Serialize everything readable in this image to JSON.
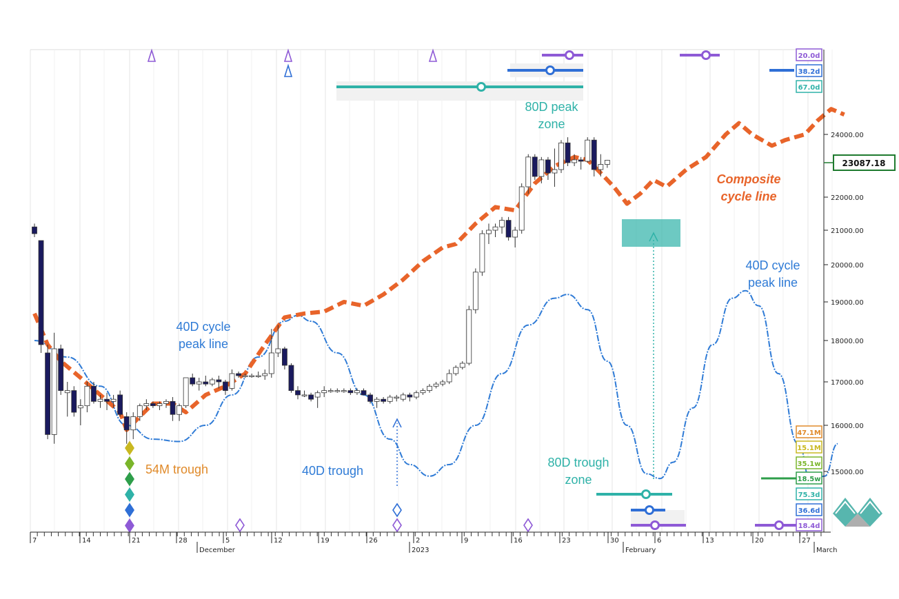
{
  "chart_data": {
    "type": "candlestick",
    "price_axis": {
      "labels": [
        "24000.00",
        "23000.00",
        "22000.00",
        "21000.00",
        "20000.00",
        "19000.00",
        "18000.00",
        "17000.00",
        "16000.00",
        "15000.00"
      ],
      "current_price": "23087.18"
    },
    "x_axis": {
      "day_labels": [
        "7",
        "14",
        "21",
        "28",
        "5",
        "12",
        "19",
        "26",
        "2",
        "9",
        "16",
        "23",
        "30",
        "6",
        "13",
        "20",
        "27"
      ],
      "month_labels": [
        "December",
        "2023",
        "February",
        "March"
      ]
    },
    "candles": [
      {
        "o": 21100,
        "h": 21200,
        "l": 20800,
        "c": 20900
      },
      {
        "o": 20700,
        "h": 20700,
        "l": 17700,
        "c": 17900
      },
      {
        "o": 17700,
        "h": 17900,
        "l": 15700,
        "c": 15800
      },
      {
        "o": 15800,
        "h": 18200,
        "l": 15600,
        "c": 17800
      },
      {
        "o": 17800,
        "h": 17900,
        "l": 16700,
        "c": 16800
      },
      {
        "o": 16750,
        "h": 17000,
        "l": 16200,
        "c": 16800
      },
      {
        "o": 16800,
        "h": 16900,
        "l": 16200,
        "c": 16300
      },
      {
        "o": 16400,
        "h": 16600,
        "l": 16000,
        "c": 16450
      },
      {
        "o": 16450,
        "h": 17000,
        "l": 16300,
        "c": 16900
      },
      {
        "o": 16900,
        "h": 17000,
        "l": 16500,
        "c": 16550
      },
      {
        "o": 16550,
        "h": 16700,
        "l": 16400,
        "c": 16600
      },
      {
        "o": 16600,
        "h": 16750,
        "l": 16350,
        "c": 16550
      },
      {
        "o": 16550,
        "h": 16700,
        "l": 16400,
        "c": 16600
      },
      {
        "o": 16700,
        "h": 16800,
        "l": 16200,
        "c": 16250
      },
      {
        "o": 16200,
        "h": 16300,
        "l": 15600,
        "c": 15900
      },
      {
        "o": 15900,
        "h": 16300,
        "l": 15700,
        "c": 16200
      },
      {
        "o": 16200,
        "h": 16500,
        "l": 16100,
        "c": 16450
      },
      {
        "o": 16450,
        "h": 16600,
        "l": 16350,
        "c": 16500
      },
      {
        "o": 16500,
        "h": 16550,
        "l": 16400,
        "c": 16450
      },
      {
        "o": 16450,
        "h": 16550,
        "l": 16350,
        "c": 16500
      },
      {
        "o": 16500,
        "h": 16600,
        "l": 16400,
        "c": 16550
      },
      {
        "o": 16550,
        "h": 16650,
        "l": 16100,
        "c": 16250
      },
      {
        "o": 16250,
        "h": 16500,
        "l": 16100,
        "c": 16450
      },
      {
        "o": 16450,
        "h": 17100,
        "l": 16400,
        "c": 17100
      },
      {
        "o": 17100,
        "h": 17200,
        "l": 16900,
        "c": 16950
      },
      {
        "o": 16950,
        "h": 17100,
        "l": 16800,
        "c": 17000
      },
      {
        "o": 17000,
        "h": 17150,
        "l": 16900,
        "c": 16950
      },
      {
        "o": 16950,
        "h": 17100,
        "l": 16900,
        "c": 17050
      },
      {
        "o": 17050,
        "h": 17150,
        "l": 16850,
        "c": 17000
      },
      {
        "o": 17000,
        "h": 17050,
        "l": 16700,
        "c": 16800
      },
      {
        "o": 16850,
        "h": 17300,
        "l": 16800,
        "c": 17200
      },
      {
        "o": 17200,
        "h": 17250,
        "l": 17100,
        "c": 17150
      },
      {
        "o": 17150,
        "h": 17200,
        "l": 17100,
        "c": 17150
      },
      {
        "o": 17150,
        "h": 17200,
        "l": 17100,
        "c": 17150
      },
      {
        "o": 17150,
        "h": 17250,
        "l": 17100,
        "c": 17150
      },
      {
        "o": 17150,
        "h": 17300,
        "l": 17050,
        "c": 17200
      },
      {
        "o": 17200,
        "h": 18300,
        "l": 17100,
        "c": 17700
      },
      {
        "o": 17700,
        "h": 18400,
        "l": 17600,
        "c": 17800
      },
      {
        "o": 17800,
        "h": 17850,
        "l": 17300,
        "c": 17400
      },
      {
        "o": 17400,
        "h": 17450,
        "l": 16750,
        "c": 16800
      },
      {
        "o": 16800,
        "h": 16900,
        "l": 16600,
        "c": 16700
      },
      {
        "o": 16700,
        "h": 16800,
        "l": 16650,
        "c": 16700
      },
      {
        "o": 16700,
        "h": 16750,
        "l": 16550,
        "c": 16600
      },
      {
        "o": 16650,
        "h": 16800,
        "l": 16400,
        "c": 16750
      },
      {
        "o": 16750,
        "h": 16900,
        "l": 16650,
        "c": 16800
      },
      {
        "o": 16800,
        "h": 16850,
        "l": 16750,
        "c": 16800
      },
      {
        "o": 16800,
        "h": 16850,
        "l": 16750,
        "c": 16800
      },
      {
        "o": 16800,
        "h": 16850,
        "l": 16750,
        "c": 16800
      },
      {
        "o": 16800,
        "h": 16850,
        "l": 16700,
        "c": 16750
      },
      {
        "o": 16750,
        "h": 16850,
        "l": 16700,
        "c": 16800
      },
      {
        "o": 16800,
        "h": 16850,
        "l": 16700,
        "c": 16700
      },
      {
        "o": 16700,
        "h": 16750,
        "l": 16500,
        "c": 16550
      },
      {
        "o": 16550,
        "h": 16650,
        "l": 16400,
        "c": 16600
      },
      {
        "o": 16600,
        "h": 16650,
        "l": 16500,
        "c": 16550
      },
      {
        "o": 16550,
        "h": 16700,
        "l": 16500,
        "c": 16650
      },
      {
        "o": 16650,
        "h": 16700,
        "l": 16550,
        "c": 16650
      },
      {
        "o": 16600,
        "h": 16750,
        "l": 16550,
        "c": 16700
      },
      {
        "o": 16700,
        "h": 16750,
        "l": 16550,
        "c": 16650
      },
      {
        "o": 16650,
        "h": 16800,
        "l": 16600,
        "c": 16750
      },
      {
        "o": 16750,
        "h": 16850,
        "l": 16700,
        "c": 16800
      },
      {
        "o": 16800,
        "h": 16950,
        "l": 16750,
        "c": 16900
      },
      {
        "o": 16900,
        "h": 17000,
        "l": 16850,
        "c": 16950
      },
      {
        "o": 16950,
        "h": 17050,
        "l": 16900,
        "c": 17000
      },
      {
        "o": 17000,
        "h": 17300,
        "l": 16950,
        "c": 17200
      },
      {
        "o": 17200,
        "h": 17400,
        "l": 17150,
        "c": 17350
      },
      {
        "o": 17350,
        "h": 17500,
        "l": 17300,
        "c": 17450
      },
      {
        "o": 17450,
        "h": 18900,
        "l": 17400,
        "c": 18800
      },
      {
        "o": 18800,
        "h": 19900,
        "l": 18700,
        "c": 19800
      },
      {
        "o": 19800,
        "h": 21000,
        "l": 19700,
        "c": 20900
      },
      {
        "o": 20900,
        "h": 21200,
        "l": 20600,
        "c": 21000
      },
      {
        "o": 21000,
        "h": 21200,
        "l": 20800,
        "c": 21100
      },
      {
        "o": 21100,
        "h": 21400,
        "l": 20900,
        "c": 21300
      },
      {
        "o": 21300,
        "h": 21400,
        "l": 20700,
        "c": 20800
      },
      {
        "o": 20800,
        "h": 21100,
        "l": 20500,
        "c": 21000
      },
      {
        "o": 21000,
        "h": 22400,
        "l": 20900,
        "c": 22300
      },
      {
        "o": 22300,
        "h": 23300,
        "l": 22100,
        "c": 23200
      },
      {
        "o": 23200,
        "h": 23300,
        "l": 22500,
        "c": 22600
      },
      {
        "o": 22600,
        "h": 23200,
        "l": 22400,
        "c": 23100
      },
      {
        "o": 23100,
        "h": 23200,
        "l": 22500,
        "c": 22700
      },
      {
        "o": 22700,
        "h": 23500,
        "l": 22300,
        "c": 22800
      },
      {
        "o": 22800,
        "h": 23800,
        "l": 22700,
        "c": 23700
      },
      {
        "o": 23700,
        "h": 23900,
        "l": 22900,
        "c": 23000
      },
      {
        "o": 23000,
        "h": 23300,
        "l": 22900,
        "c": 23100
      },
      {
        "o": 23100,
        "h": 23200,
        "l": 22800,
        "c": 23050
      },
      {
        "o": 23050,
        "h": 23900,
        "l": 23000,
        "c": 23800
      },
      {
        "o": 23800,
        "h": 23900,
        "l": 22600,
        "c": 22800
      },
      {
        "o": 22800,
        "h": 23300,
        "l": 22600,
        "c": 22950
      },
      {
        "o": 22950,
        "h": 23100,
        "l": 22850,
        "c": 23087
      }
    ],
    "composite_cycle_line": [
      {
        "t": 0,
        "v": 18700
      },
      {
        "t": 2,
        "v": 17900
      },
      {
        "t": 4,
        "v": 17500
      },
      {
        "t": 7,
        "v": 17100
      },
      {
        "t": 10,
        "v": 16700
      },
      {
        "t": 13,
        "v": 16300
      },
      {
        "t": 14,
        "v": 15900
      },
      {
        "t": 16,
        "v": 16200
      },
      {
        "t": 18,
        "v": 16500
      },
      {
        "t": 21,
        "v": 16500
      },
      {
        "t": 23,
        "v": 16300
      },
      {
        "t": 26,
        "v": 16700
      },
      {
        "t": 29,
        "v": 16900
      },
      {
        "t": 32,
        "v": 17200
      },
      {
        "t": 35,
        "v": 17900
      },
      {
        "t": 38,
        "v": 18600
      },
      {
        "t": 41,
        "v": 18700
      },
      {
        "t": 44,
        "v": 18750
      },
      {
        "t": 47,
        "v": 19000
      },
      {
        "t": 50,
        "v": 18900
      },
      {
        "t": 53,
        "v": 19200
      },
      {
        "t": 56,
        "v": 19600
      },
      {
        "t": 59,
        "v": 20100
      },
      {
        "t": 62,
        "v": 20500
      },
      {
        "t": 64,
        "v": 20600
      },
      {
        "t": 67,
        "v": 21200
      },
      {
        "t": 70,
        "v": 21700
      },
      {
        "t": 73,
        "v": 21600
      },
      {
        "t": 76,
        "v": 22400
      },
      {
        "t": 79,
        "v": 22900
      },
      {
        "t": 82,
        "v": 23200
      },
      {
        "t": 84,
        "v": 23100
      },
      {
        "t": 86,
        "v": 22700
      },
      {
        "t": 88,
        "v": 22300
      },
      {
        "t": 90,
        "v": 21800
      },
      {
        "t": 92,
        "v": 22100
      },
      {
        "t": 94,
        "v": 22500
      },
      {
        "t": 96,
        "v": 22300
      },
      {
        "t": 99,
        "v": 22800
      },
      {
        "t": 102,
        "v": 23200
      },
      {
        "t": 105,
        "v": 24000
      },
      {
        "t": 107,
        "v": 24400
      },
      {
        "t": 109,
        "v": 24000
      },
      {
        "t": 112,
        "v": 23600
      },
      {
        "t": 114,
        "v": 23800
      },
      {
        "t": 117,
        "v": 24000
      },
      {
        "t": 119,
        "v": 24500
      },
      {
        "t": 121,
        "v": 24900
      },
      {
        "t": 123,
        "v": 24700
      }
    ],
    "cycle_40d_line": [
      {
        "t": 0,
        "v": 18000
      },
      {
        "t": 5,
        "v": 17600
      },
      {
        "t": 10,
        "v": 16900
      },
      {
        "t": 14,
        "v": 16000
      },
      {
        "t": 18,
        "v": 15700
      },
      {
        "t": 22,
        "v": 15650
      },
      {
        "t": 26,
        "v": 16000
      },
      {
        "t": 30,
        "v": 16700
      },
      {
        "t": 34,
        "v": 17600
      },
      {
        "t": 38,
        "v": 18500
      },
      {
        "t": 40,
        "v": 18650
      },
      {
        "t": 42,
        "v": 18500
      },
      {
        "t": 46,
        "v": 17700
      },
      {
        "t": 50,
        "v": 16700
      },
      {
        "t": 54,
        "v": 15700
      },
      {
        "t": 57,
        "v": 15150
      },
      {
        "t": 60,
        "v": 14900
      },
      {
        "t": 63,
        "v": 15150
      },
      {
        "t": 67,
        "v": 16000
      },
      {
        "t": 71,
        "v": 17200
      },
      {
        "t": 75,
        "v": 18400
      },
      {
        "t": 79,
        "v": 19100
      },
      {
        "t": 81,
        "v": 19200
      },
      {
        "t": 84,
        "v": 18800
      },
      {
        "t": 87,
        "v": 17500
      },
      {
        "t": 90,
        "v": 16000
      },
      {
        "t": 93,
        "v": 14950
      },
      {
        "t": 95,
        "v": 14850
      },
      {
        "t": 97,
        "v": 15200
      },
      {
        "t": 100,
        "v": 16400
      },
      {
        "t": 103,
        "v": 17900
      },
      {
        "t": 106,
        "v": 19100
      },
      {
        "t": 108,
        "v": 19300
      },
      {
        "t": 110,
        "v": 18900
      },
      {
        "t": 113,
        "v": 17200
      },
      {
        "t": 116,
        "v": 15600
      },
      {
        "t": 118,
        "v": 14750
      },
      {
        "t": 120,
        "v": 14900
      },
      {
        "t": 122,
        "v": 15600
      }
    ],
    "cycle_tags": [
      {
        "label": "20.0d",
        "color": "#8e5ad6"
      },
      {
        "label": "38.2d",
        "color": "#2f6fd6"
      },
      {
        "label": "67.0d",
        "color": "#2fb2a8"
      },
      {
        "label": "47.1M",
        "color": "#e08a2a"
      },
      {
        "label": "15.1M",
        "color": "#c9b820"
      },
      {
        "label": "35.1w",
        "color": "#7ab52a"
      },
      {
        "label": "18.5w",
        "color": "#2e9e4a"
      },
      {
        "label": "75.3d",
        "color": "#2fb2a8"
      },
      {
        "label": "36.6d",
        "color": "#2f6fd6"
      },
      {
        "label": "18.4d",
        "color": "#8e5ad6"
      }
    ],
    "annotations": {
      "peak_zone_80d": "80D peak\nzone",
      "composite": "Composite\ncycle line",
      "peak_line_40d_right": "40D cycle\npeak line",
      "peak_line_40d_left": "40D cycle\npeak line",
      "trough_54m": "54M trough",
      "trough_40d": "40D trough",
      "trough_zone_80d": "80D trough\nzone"
    },
    "colors": {
      "candle_up": "#ffffff",
      "candle_down": "#1a1a5e",
      "composite": "#e8642a",
      "cycle_40d": "#2f7bd6",
      "teal": "#2fb2a8",
      "purple": "#8e5ad6",
      "blue": "#2f6fd6",
      "green": "#2e9e4a",
      "orange": "#e08a2a"
    }
  }
}
